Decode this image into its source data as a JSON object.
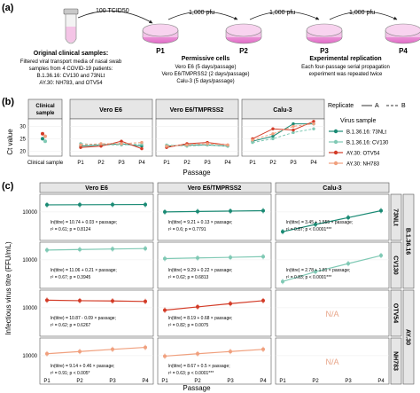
{
  "panel_a": {
    "letter": "(a)",
    "steps": [
      {
        "from": "Original",
        "to": "P1",
        "label": "100 TCID50"
      },
      {
        "from": "P1",
        "to": "P2",
        "label": "1,000 pfu"
      },
      {
        "from": "P2",
        "to": "P3",
        "label": "1,000 pfu"
      },
      {
        "from": "P3",
        "to": "P4",
        "label": "1,000 pfu"
      }
    ],
    "dishes": [
      "P1",
      "P2",
      "P3",
      "P4"
    ],
    "clinical_title": "Original clinical samples:",
    "clinical_lines": [
      "Filtered viral transport media of nasal swab",
      "samples from 4 COVID-19 patients:",
      "B.1.36.16: CV130 and 73NLt",
      "AY.30: NH783, and OTV54"
    ],
    "cells_title": "Permissive cells",
    "cells_lines": [
      "Vero E6 (5 days/passage)",
      "Vero E6/TMPRSS2 (2 days/passage)",
      "Calu-3 (5 days/passage)"
    ],
    "repl_title": "Experimental replication",
    "repl_lines": [
      "Each four-passage serial propagation",
      "experiment was repeated twice"
    ]
  },
  "panel_b": {
    "letter": "(b)",
    "ylabel": "Ct value",
    "xlabel": "Passage",
    "strips": [
      "Clinical sample",
      "Vero E6",
      "Vero E6/TMPRSS2",
      "Calu-3"
    ],
    "clinical_tick": "Clinical sample",
    "passage_ticks": [
      "P1",
      "P2",
      "P3",
      "P4"
    ],
    "yticks": [
      "30",
      "25",
      "20"
    ],
    "legend": {
      "replicate_title": "Replicate",
      "replicate_items": [
        "A",
        "B"
      ],
      "virus_title": "Virus sample",
      "virus_items": [
        {
          "name": "B.1.36.16: 73NLt",
          "color": "#1a8a74"
        },
        {
          "name": "B.1.36.16: CV130",
          "color": "#7fc9b4"
        },
        {
          "name": "AY.30: OTV54",
          "color": "#d33b27"
        },
        {
          "name": "AY.30: NH783",
          "color": "#f0a07e"
        }
      ]
    }
  },
  "panel_c": {
    "letter": "(c)",
    "ylabel": "Infectious virus titre (FFU/mL)",
    "xlabel": "Passage",
    "col_strips": [
      "Vero E6",
      "Vero E6/TMPRSS2",
      "Calu-3"
    ],
    "row_strips": [
      "73NLt",
      "CV130",
      "OTV54",
      "NH783"
    ],
    "group_strips": [
      "B.1.36.16",
      "AY.30"
    ],
    "passage_ticks": [
      "P1",
      "P2",
      "P3",
      "P4"
    ],
    "na_text": "N/A",
    "rows": [
      {
        "color": "#1a8a74",
        "ytick": "10000",
        "eqs": [
          [
            "ln(titre) = 10.74 + 0.03 × passage;",
            "r² = 0.61; p = 0.8124"
          ],
          [
            "ln(titre) = 9.21 + 0.13 × passage;",
            "r² = 0.6; p = 0.7791"
          ],
          [
            "ln(titre) = 3.45 + 1.555 × passage;",
            "r² = 0.87; p < 0.0001***"
          ]
        ]
      },
      {
        "color": "#7fc9b4",
        "ytick": "10000",
        "eqs": [
          [
            "ln(titre) = 11.06 + 0.21 × passage;",
            "r² = 0.67; p = 0.3945"
          ],
          [
            "ln(titre) = 9.29 + 0.22 × passage;",
            "r² = 0.62; p = 0.6813"
          ],
          [
            "ln(titre) = 2.78 + 1.81 × passage;",
            "r² = 0.83; p < 0.0001***"
          ]
        ]
      },
      {
        "color": "#d33b27",
        "ytick": "10000",
        "eqs": [
          [
            "ln(titre) = 10.87 - 0.09 × passage;",
            "r² = 0.62; p = 0.6267"
          ],
          [
            "ln(titre) = 8.19 + 0.68 × passage;",
            "r² = 0.82; p = 0.0075"
          ],
          null
        ]
      },
      {
        "color": "#f0a07e",
        "ytick": "10000",
        "eqs": [
          [
            "ln(titre) = 9.14 + 0.46 × passage;",
            "r² = 0.91; p < 0.005*"
          ],
          [
            "ln(titre) = 8.67 + 0.5 × passage;",
            "r² = 0.63; p < 0.0001***"
          ],
          null
        ]
      }
    ]
  },
  "chart_data": [
    {
      "type": "line",
      "title": "",
      "ylabel": "Ct value",
      "xlabel": "Passage",
      "x": [
        "P1",
        "P2",
        "P3",
        "P4"
      ],
      "facets": [
        "Vero E6",
        "Vero E6/TMPRSS2",
        "Calu-3"
      ],
      "clinical_sample_ct": {
        "B.1.36.16: 73NLt": 25,
        "B.1.36.16: CV130": 24,
        "AY.30: OTV54": 27,
        "AY.30: NH783": 26
      },
      "series": [
        {
          "name": "B.1.36.16: 73NLt",
          "facet": "Vero E6",
          "values": [
            22,
            22.5,
            23,
            22
          ]
        },
        {
          "name": "B.1.36.16: CV130",
          "facet": "Vero E6",
          "values": [
            23,
            22.5,
            22.5,
            22.8
          ]
        },
        {
          "name": "AY.30: OTV54",
          "facet": "Vero E6",
          "values": [
            21.5,
            22,
            24,
            21
          ]
        },
        {
          "name": "AY.30: NH783",
          "facet": "Vero E6",
          "values": [
            22.5,
            23,
            23,
            23.5
          ]
        },
        {
          "name": "B.1.36.16: 73NLt",
          "facet": "Vero E6/TMPRSS2",
          "values": [
            22,
            22.5,
            22.5,
            22
          ]
        },
        {
          "name": "B.1.36.16: CV130",
          "facet": "Vero E6/TMPRSS2",
          "values": [
            22.5,
            22,
            22.5,
            22
          ]
        },
        {
          "name": "AY.30: OTV54",
          "facet": "Vero E6/TMPRSS2",
          "values": [
            21.5,
            23,
            23.5,
            22.5
          ]
        },
        {
          "name": "AY.30: NH783",
          "facet": "Vero E6/TMPRSS2",
          "values": [
            22,
            22.5,
            23,
            22.5
          ]
        },
        {
          "name": "B.1.36.16: 73NLt",
          "facet": "Calu-3",
          "values": [
            24,
            26,
            31,
            31
          ]
        },
        {
          "name": "B.1.36.16: CV130",
          "facet": "Calu-3",
          "values": [
            23.5,
            25,
            27.5,
            29
          ]
        },
        {
          "name": "AY.30: OTV54",
          "facet": "Calu-3",
          "values": [
            25,
            29,
            28.5,
            32
          ]
        },
        {
          "name": "AY.30: NH783",
          "facet": "Calu-3",
          "values": [
            24.5,
            27,
            30,
            31
          ]
        }
      ],
      "yticks": [
        20,
        25,
        30
      ],
      "ylim": [
        18,
        33
      ]
    },
    {
      "type": "scatter",
      "ylabel": "Infectious virus titre (FFU/mL)",
      "xlabel": "Passage",
      "x": [
        "P1",
        "P2",
        "P3",
        "P4"
      ],
      "log_y": true,
      "facets_cols": [
        "Vero E6",
        "Vero E6/TMPRSS2",
        "Calu-3"
      ],
      "facets_rows": [
        "73NLt",
        "CV130",
        "OTV54",
        "NH783"
      ],
      "series": [
        {
          "name": "73NLt",
          "facet": "Vero E6",
          "values": [
            45000,
            46000,
            47000,
            48000
          ]
        },
        {
          "name": "73NLt",
          "facet": "Vero E6/TMPRSS2",
          "values": [
            10000,
            11000,
            12000,
            13000
          ]
        },
        {
          "name": "73NLt",
          "facet": "Calu-3",
          "values": [
            150,
            700,
            3000,
            13000
          ]
        },
        {
          "name": "CV130",
          "facet": "Vero E6",
          "values": [
            80000,
            90000,
            100000,
            110000
          ]
        },
        {
          "name": "CV130",
          "facet": "Vero E6/TMPRSS2",
          "values": [
            13000,
            15000,
            17000,
            20000
          ]
        },
        {
          "name": "CV130",
          "facet": "Calu-3",
          "values": [
            100,
            800,
            4500,
            25000
          ]
        },
        {
          "name": "OTV54",
          "facet": "Vero E6",
          "values": [
            50000,
            45000,
            42000,
            38000
          ]
        },
        {
          "name": "OTV54",
          "facet": "Vero E6/TMPRSS2",
          "values": [
            6000,
            12000,
            24000,
            45000
          ]
        },
        {
          "name": "NH783",
          "facet": "Vero E6",
          "values": [
            15000,
            24000,
            38000,
            58000
          ]
        },
        {
          "name": "NH783",
          "facet": "Vero E6/TMPRSS2",
          "values": [
            9000,
            15000,
            24000,
            38000
          ]
        }
      ],
      "yticks": [
        10000
      ]
    }
  ]
}
